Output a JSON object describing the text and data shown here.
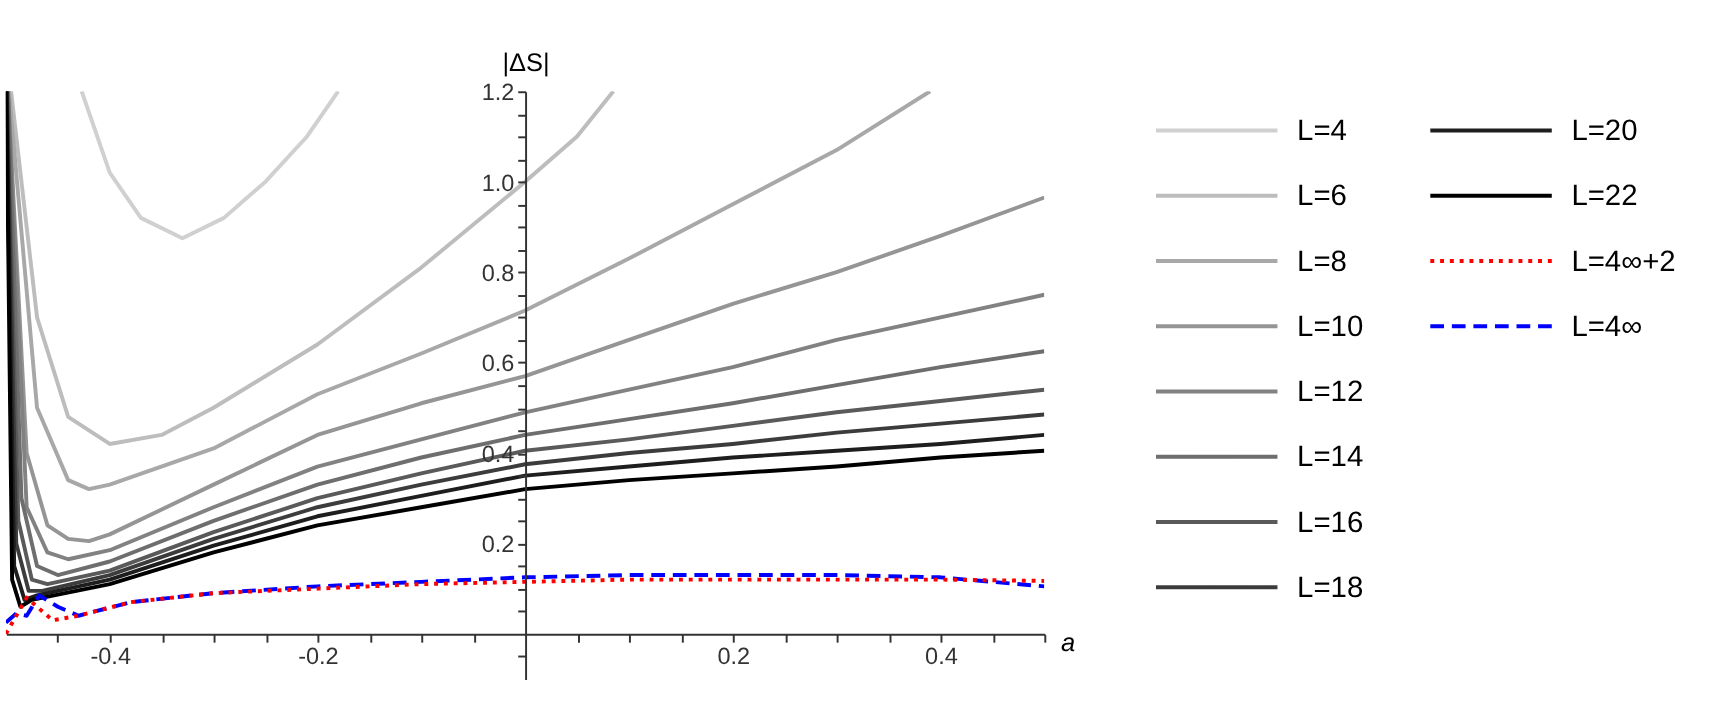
{
  "chart_data": {
    "type": "line",
    "xlabel": "a",
    "ylabel": "|ΔS|",
    "xlim": [
      -0.5,
      0.5
    ],
    "ylim": [
      -0.1,
      1.2
    ],
    "xticks": [
      {
        "value": -0.45,
        "label": null
      },
      -0.4,
      {
        "value": -0.35,
        "label": null
      },
      {
        "value": -0.3,
        "label": null
      },
      {
        "value": -0.25,
        "label": null
      },
      -0.2,
      {
        "value": -0.15,
        "label": null
      },
      {
        "value": -0.1,
        "label": null
      },
      {
        "value": -0.05,
        "label": null
      },
      {
        "value": 0.05,
        "label": null
      },
      {
        "value": 0.1,
        "label": null
      },
      {
        "value": 0.15,
        "label": null
      },
      0.2,
      {
        "value": 0.25,
        "label": null
      },
      {
        "value": 0.3,
        "label": null
      },
      {
        "value": 0.35,
        "label": null
      },
      0.4,
      {
        "value": 0.45,
        "label": null
      },
      {
        "value": 0.5,
        "label": null
      }
    ],
    "yticks": [
      {
        "value": -0.05,
        "label": null
      },
      {
        "value": 0.05,
        "label": null
      },
      {
        "value": 0.1,
        "label": null
      },
      {
        "value": 0.15,
        "label": null
      },
      0.2,
      {
        "value": 0.25,
        "label": null
      },
      {
        "value": 0.3,
        "label": null
      },
      {
        "value": 0.35,
        "label": null
      },
      0.4,
      {
        "value": 0.45,
        "label": null
      },
      {
        "value": 0.5,
        "label": null
      },
      {
        "value": 0.55,
        "label": null
      },
      0.6,
      {
        "value": 0.65,
        "label": null
      },
      {
        "value": 0.7,
        "label": null
      },
      {
        "value": 0.75,
        "label": null
      },
      0.8,
      {
        "value": 0.85,
        "label": null
      },
      {
        "value": 0.9,
        "label": null
      },
      {
        "value": 0.95,
        "label": null
      },
      {
        "value": 1,
        "label": "1.0"
      },
      {
        "value": 1.05,
        "label": null
      },
      {
        "value": 1.1,
        "label": null
      },
      {
        "value": 1.15,
        "label": null
      },
      1.2
    ],
    "grid": false,
    "legend": "right",
    "marker": "none",
    "line_style": "solid",
    "series": [
      {
        "name": "L=4",
        "color": "#d0d0d0",
        "x": [
          -0.427,
          -0.4,
          -0.37,
          -0.33,
          -0.29,
          -0.25,
          -0.21,
          -0.18
        ],
        "values": [
          1.2,
          1.02,
          0.92,
          0.875,
          0.92,
          1.0,
          1.1,
          1.2
        ]
      },
      {
        "name": "L=6",
        "color": "#bdbdbd",
        "x": [
          -0.495,
          -0.47,
          -0.44,
          -0.4,
          -0.35,
          -0.3,
          -0.2,
          -0.1,
          0,
          0.05,
          0.085
        ],
        "values": [
          1.2,
          0.7,
          0.48,
          0.42,
          0.44,
          0.5,
          0.64,
          0.81,
          1.0,
          1.1,
          1.2
        ]
      },
      {
        "name": "L=8",
        "color": "#a8a8a8",
        "x": [
          -0.497,
          -0.47,
          -0.44,
          -0.42,
          -0.4,
          -0.3,
          -0.2,
          -0.1,
          0,
          0.1,
          0.2,
          0.3,
          0.39
        ],
        "values": [
          1.2,
          0.5,
          0.34,
          0.32,
          0.33,
          0.41,
          0.53,
          0.62,
          0.715,
          0.83,
          0.95,
          1.07,
          1.2
        ]
      },
      {
        "name": "L=10",
        "color": "#959595",
        "x": [
          -0.498,
          -0.48,
          -0.46,
          -0.44,
          -0.42,
          -0.4,
          -0.3,
          -0.2,
          -0.1,
          0,
          0.1,
          0.2,
          0.3,
          0.4,
          0.5
        ],
        "values": [
          1.2,
          0.4,
          0.24,
          0.21,
          0.205,
          0.22,
          0.33,
          0.44,
          0.51,
          0.57,
          0.65,
          0.73,
          0.8,
          0.88,
          0.965
        ]
      },
      {
        "name": "L=12",
        "color": "#828282",
        "x": [
          -0.498,
          -0.48,
          -0.46,
          -0.44,
          -0.4,
          -0.3,
          -0.2,
          -0.1,
          0,
          0.1,
          0.2,
          0.3,
          0.4,
          0.5
        ],
        "values": [
          1.2,
          0.28,
          0.18,
          0.165,
          0.185,
          0.28,
          0.37,
          0.43,
          0.49,
          0.54,
          0.59,
          0.65,
          0.7,
          0.75
        ]
      },
      {
        "name": "L=14",
        "color": "#6e6e6e",
        "x": [
          -0.498,
          -0.485,
          -0.47,
          -0.45,
          -0.4,
          -0.3,
          -0.2,
          -0.1,
          0,
          0.1,
          0.2,
          0.3,
          0.4,
          0.5
        ],
        "values": [
          1.2,
          0.3,
          0.15,
          0.13,
          0.16,
          0.25,
          0.33,
          0.39,
          0.44,
          0.475,
          0.51,
          0.55,
          0.59,
          0.625
        ]
      },
      {
        "name": "L=16",
        "color": "#5a5a5a",
        "x": [
          -0.499,
          -0.488,
          -0.475,
          -0.46,
          -0.4,
          -0.3,
          -0.2,
          -0.1,
          0,
          0.1,
          0.2,
          0.3,
          0.4,
          0.5
        ],
        "values": [
          1.2,
          0.25,
          0.12,
          0.11,
          0.14,
          0.225,
          0.3,
          0.355,
          0.405,
          0.43,
          0.46,
          0.49,
          0.515,
          0.54
        ]
      },
      {
        "name": "L=18",
        "color": "#3c3c3c",
        "x": [
          -0.499,
          -0.49,
          -0.478,
          -0.465,
          -0.4,
          -0.3,
          -0.2,
          -0.1,
          0,
          0.1,
          0.2,
          0.3,
          0.4,
          0.5
        ],
        "values": [
          1.2,
          0.2,
          0.095,
          0.095,
          0.13,
          0.21,
          0.28,
          0.33,
          0.375,
          0.4,
          0.42,
          0.445,
          0.465,
          0.485
        ]
      },
      {
        "name": "L=20",
        "color": "#1e1e1e",
        "x": [
          -0.4995,
          -0.492,
          -0.482,
          -0.47,
          -0.4,
          -0.3,
          -0.2,
          -0.1,
          0,
          0.1,
          0.2,
          0.3,
          0.4,
          0.5
        ],
        "values": [
          1.2,
          0.15,
          0.075,
          0.085,
          0.12,
          0.195,
          0.26,
          0.305,
          0.35,
          0.37,
          0.39,
          0.405,
          0.42,
          0.44
        ]
      },
      {
        "name": "L=22",
        "color": "#000000",
        "x": [
          -0.4995,
          -0.494,
          -0.486,
          -0.475,
          -0.4,
          -0.3,
          -0.2,
          -0.1,
          0,
          0.1,
          0.2,
          0.3,
          0.4,
          0.5
        ],
        "values": [
          1.2,
          0.12,
          0.06,
          0.075,
          0.11,
          0.18,
          0.24,
          0.28,
          0.32,
          0.34,
          0.355,
          0.37,
          0.39,
          0.405
        ]
      },
      {
        "name": "L=4∞+2",
        "color": "#ff0000",
        "line_style": "dotted",
        "x": [
          -0.5,
          -0.49,
          -0.48,
          -0.47,
          -0.455,
          -0.43,
          -0.38,
          -0.3,
          -0.2,
          -0.1,
          0,
          0.1,
          0.2,
          0.3,
          0.4,
          0.5
        ],
        "values": [
          0.0,
          0.04,
          0.08,
          0.06,
          0.03,
          0.04,
          0.07,
          0.09,
          0.1,
          0.11,
          0.115,
          0.12,
          0.12,
          0.12,
          0.12,
          0.117
        ]
      },
      {
        "name": "L=4∞",
        "color": "#0000ff",
        "line_style": "dashed",
        "x": [
          -0.5,
          -0.49,
          -0.48,
          -0.468,
          -0.45,
          -0.43,
          -0.38,
          -0.3,
          -0.2,
          -0.1,
          0,
          0.1,
          0.2,
          0.3,
          0.4,
          0.5
        ],
        "values": [
          0.025,
          0.045,
          0.04,
          0.085,
          0.06,
          0.04,
          0.07,
          0.09,
          0.105,
          0.115,
          0.125,
          0.13,
          0.13,
          0.13,
          0.125,
          0.105
        ]
      }
    ]
  }
}
